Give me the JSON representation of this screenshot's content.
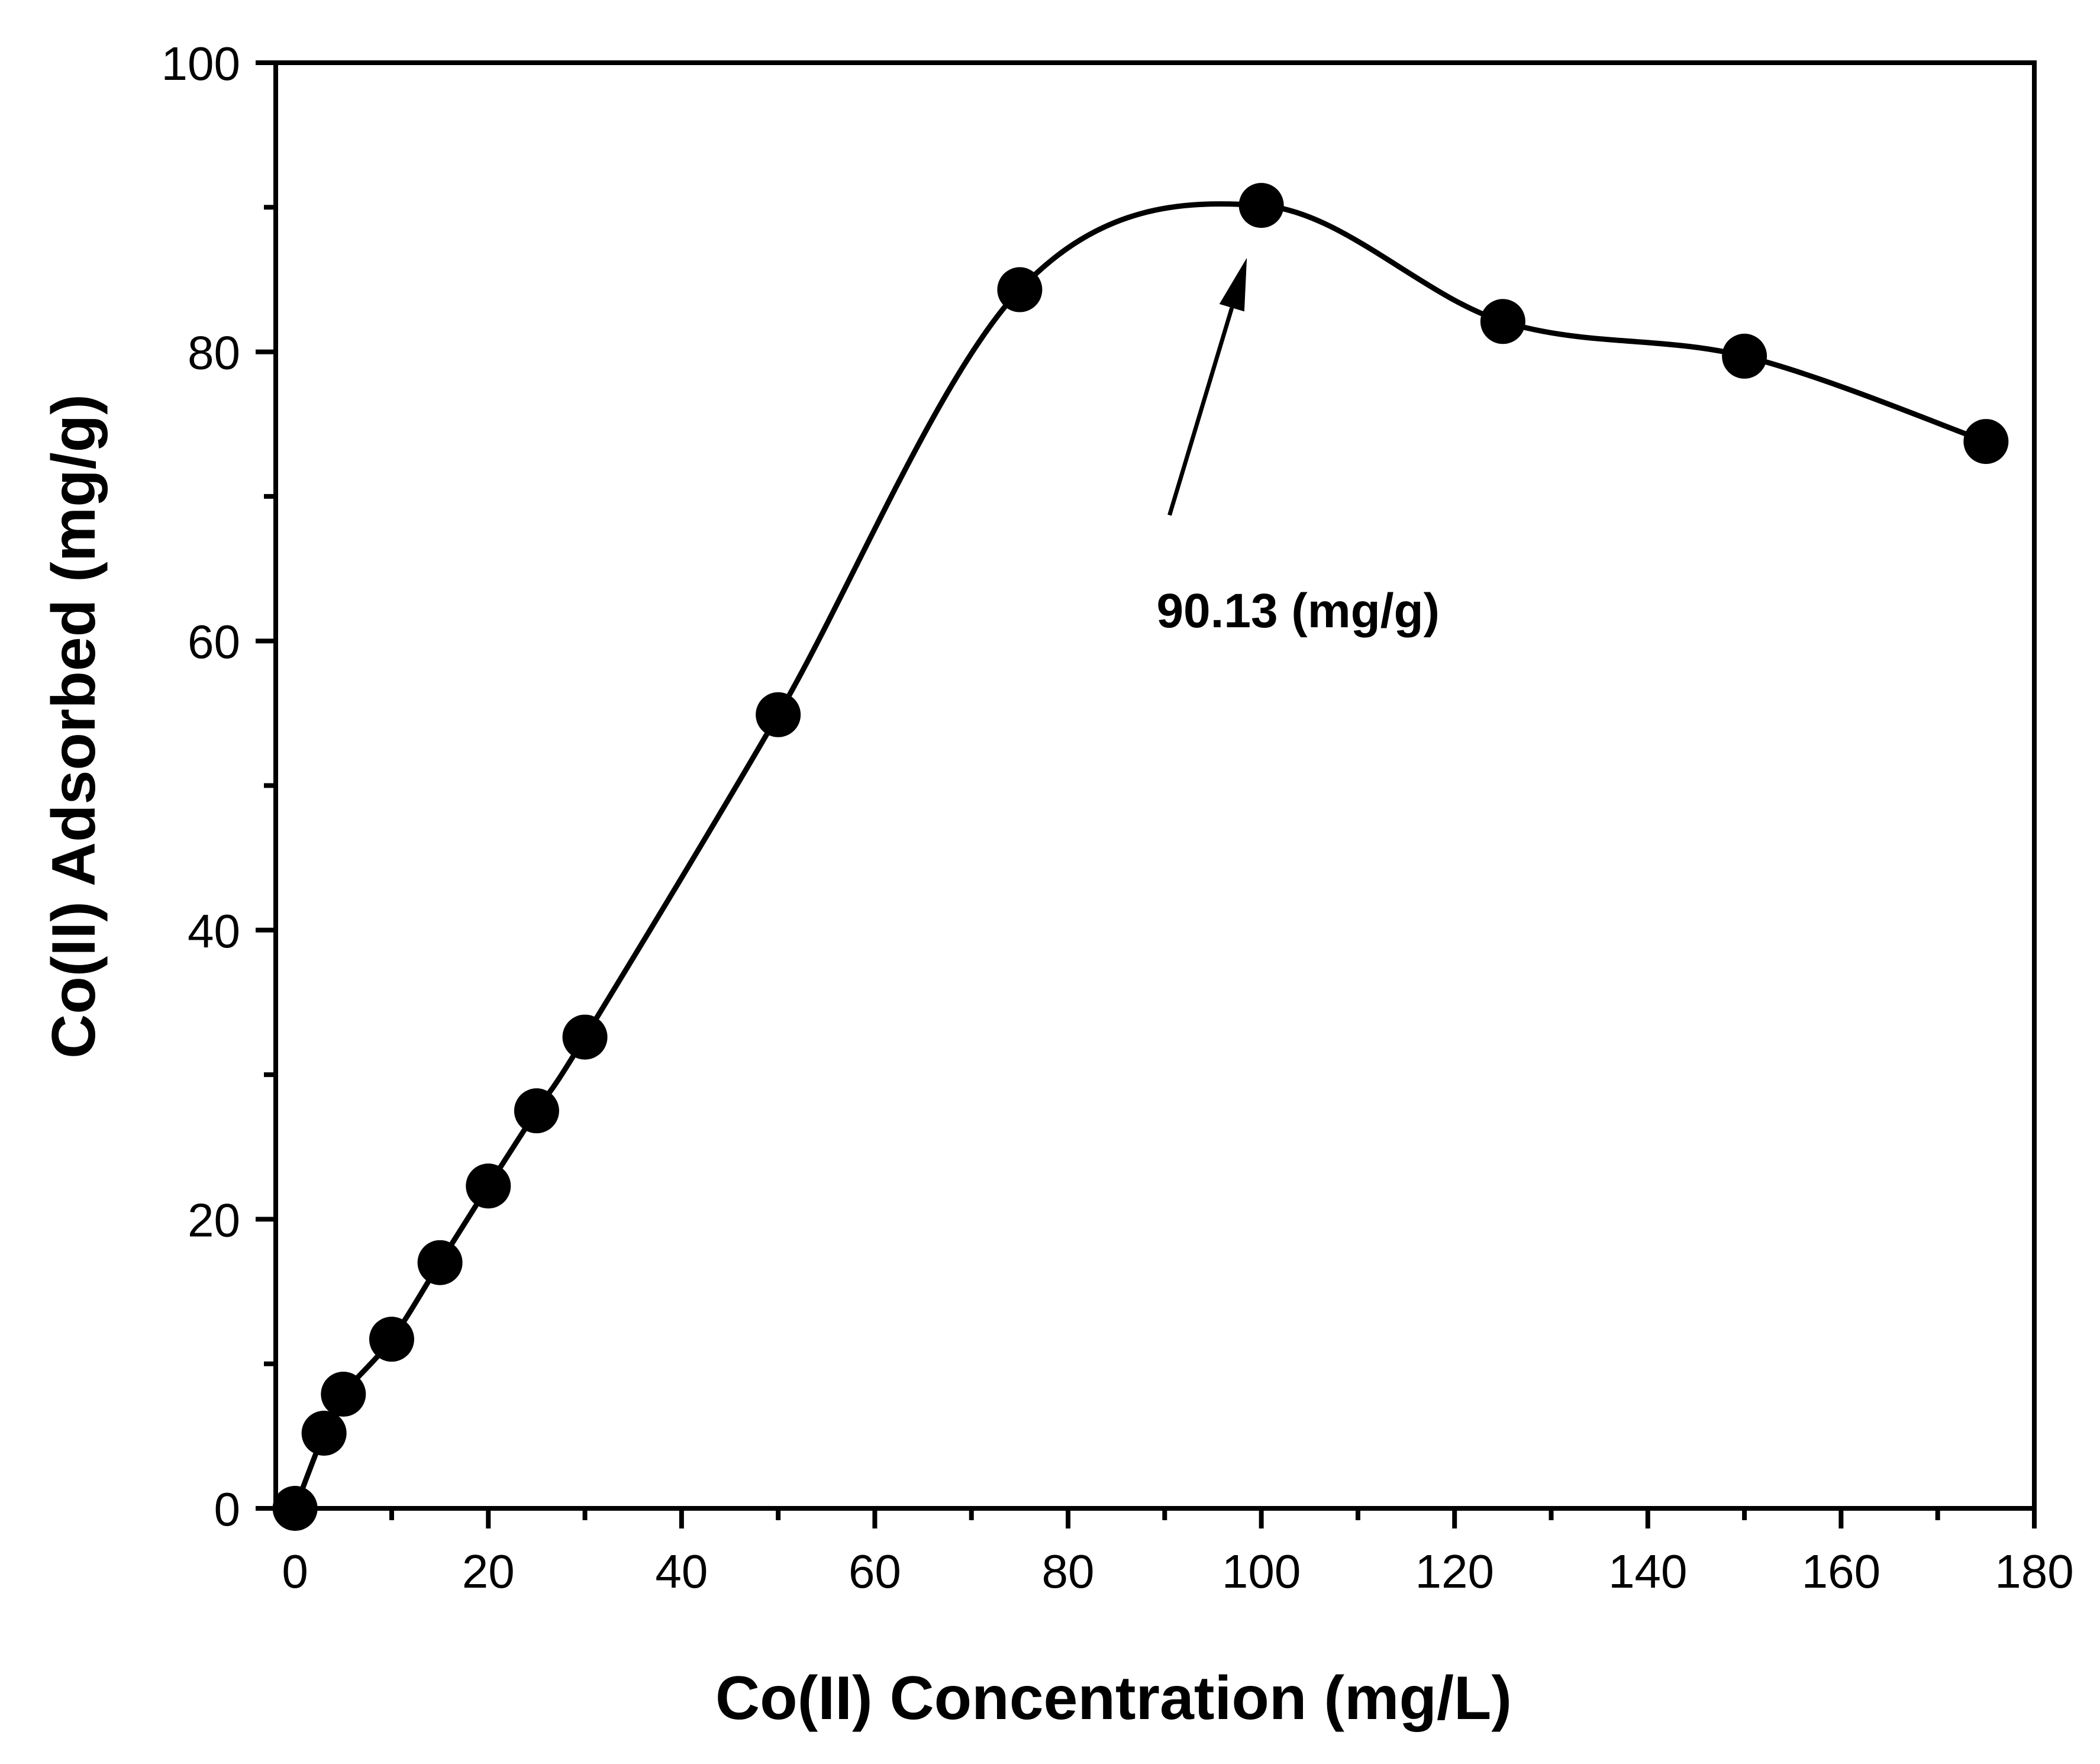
{
  "chart_data": {
    "type": "line",
    "title": "",
    "xlabel": "Co(II) Concentration (mg/L)",
    "ylabel": "Co(II) Adsorbed (mg/g)",
    "xlim": [
      -2,
      180
    ],
    "ylim": [
      0,
      100
    ],
    "x_ticks": [
      "0",
      "20",
      "40",
      "60",
      "80",
      "100",
      "120",
      "140",
      "160",
      "180"
    ],
    "y_ticks": [
      "0",
      "20",
      "40",
      "60",
      "80",
      "100"
    ],
    "grid": false,
    "legend": "none",
    "series": [
      {
        "name": "Co(II) adsorbed",
        "marker": "filled-circle",
        "line": "smooth",
        "color": "#000000",
        "x": [
          0,
          3,
          5,
          10,
          15,
          20,
          25,
          30,
          50,
          75,
          100,
          125,
          150,
          175
        ],
        "y": [
          0,
          5.2,
          7.9,
          11.7,
          17.0,
          22.3,
          27.5,
          32.6,
          54.9,
          84.3,
          90.13,
          82.1,
          79.7,
          73.8
        ]
      }
    ],
    "annotations": [
      {
        "text": "90.13 (mg/g)",
        "points_to": [
          98.5,
          86.5
        ],
        "arrow_from": [
          90.5,
          68.7
        ],
        "text_anchor": [
          103.8,
          62.1
        ]
      }
    ]
  }
}
